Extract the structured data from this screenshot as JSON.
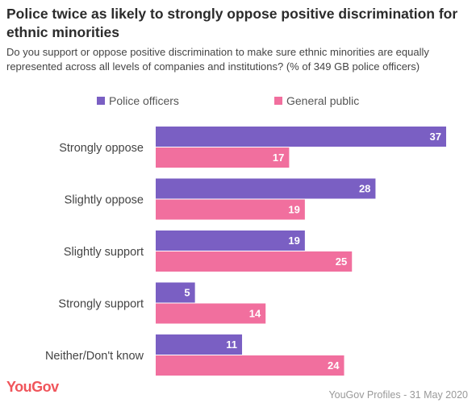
{
  "title": "Police twice as likely to strongly oppose positive discrimination for ethnic minorities",
  "subtitle": "Do you support or oppose positive discrimination to make sure ethnic minorities are equally represented across all levels of companies and institutions? (% of 349 GB police officers)",
  "brand": "YouGov",
  "source": "YouGov Profiles - 31 May 2020",
  "colors": {
    "police": "#7a5fc3",
    "public": "#f16f9e"
  },
  "chart_data": {
    "type": "bar",
    "orientation": "horizontal",
    "categories": [
      "Strongly oppose",
      "Slightly oppose",
      "Slightly support",
      "Strongly support",
      "Neither/Don't know"
    ],
    "series": [
      {
        "name": "Police officers",
        "values": [
          37,
          28,
          19,
          5,
          11
        ]
      },
      {
        "name": "General public",
        "values": [
          17,
          19,
          25,
          14,
          24
        ]
      }
    ],
    "xlim": [
      0,
      37
    ],
    "legend_position": "top",
    "grid": false,
    "data_labels": true
  }
}
